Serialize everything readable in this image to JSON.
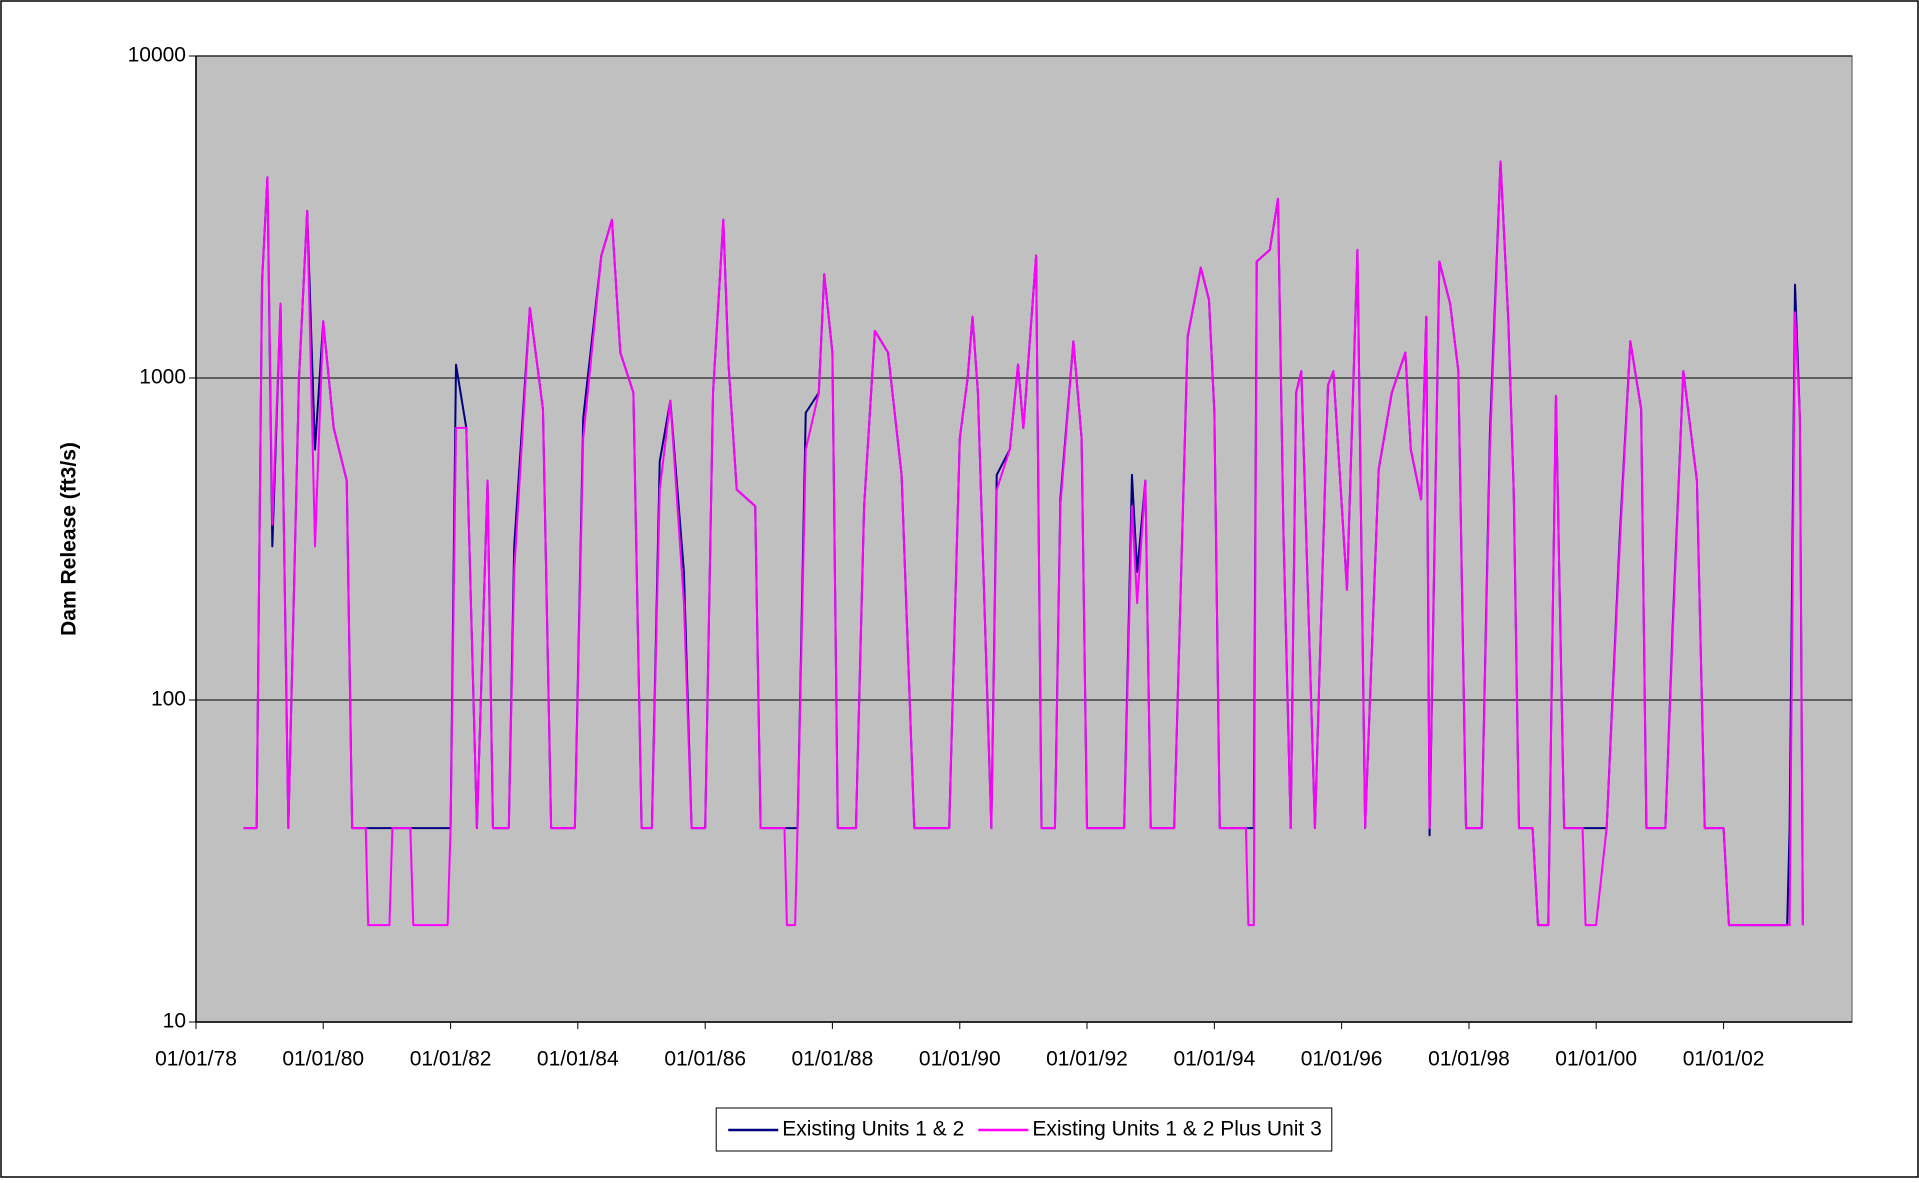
{
  "chart_data": {
    "type": "line",
    "y_label": "Dam Release (ft3/s)",
    "log_y": true,
    "grid": true,
    "legend": "bottom",
    "xlim": [
      "01/01/78",
      "01/08/04"
    ],
    "xticks": [
      "01/01/78",
      "01/01/80",
      "01/01/82",
      "01/01/84",
      "01/01/86",
      "01/01/88",
      "01/01/90",
      "01/01/92",
      "01/01/94",
      "01/01/96",
      "01/01/98",
      "01/01/00",
      "01/01/02"
    ],
    "ylim": [
      10,
      10000
    ],
    "yticks": [
      10,
      100,
      1000,
      10000
    ],
    "x": [
      "10/01/78",
      "12/15/78",
      "01/15/79",
      "02/15/79",
      "03/15/79",
      "05/01/79",
      "06/15/79",
      "08/15/79",
      "10/01/79",
      "11/15/79",
      "01/01/80",
      "03/01/80",
      "05/15/80",
      "06/15/80",
      "09/01/80",
      "09/15/80",
      "01/15/81",
      "02/01/81",
      "05/15/81",
      "06/01/81",
      "12/15/81",
      "01/01/82",
      "02/01/82",
      "04/01/82",
      "06/01/82",
      "08/01/82",
      "09/01/82",
      "12/01/82",
      "01/01/83",
      "04/01/83",
      "06/15/83",
      "08/01/83",
      "12/15/83",
      "02/01/84",
      "05/15/84",
      "07/15/84",
      "09/01/84",
      "11/15/84",
      "01/01/85",
      "03/01/85",
      "04/15/85",
      "06/15/85",
      "09/01/85",
      "10/15/85",
      "01/01/86",
      "02/15/86",
      "04/15/86",
      "05/15/86",
      "07/01/86",
      "10/15/86",
      "11/15/86",
      "04/01/87",
      "04/15/87",
      "06/01/87",
      "06/15/87",
      "08/01/87",
      "10/15/87",
      "11/15/87",
      "01/01/88",
      "02/01/88",
      "05/15/88",
      "07/01/88",
      "09/01/88",
      "11/15/88",
      "02/01/89",
      "04/15/89",
      "11/01/89",
      "01/01/90",
      "02/15/90",
      "03/15/90",
      "04/15/90",
      "07/01/90",
      "08/01/90",
      "10/15/90",
      "12/01/90",
      "01/01/91",
      "03/15/91",
      "04/15/91",
      "07/01/91",
      "08/01/91",
      "10/15/91",
      "12/01/91",
      "01/01/92",
      "08/01/92",
      "09/15/92",
      "10/15/92",
      "12/01/92",
      "01/01/93",
      "05/15/93",
      "08/01/93",
      "10/15/93",
      "12/01/93",
      "01/01/94",
      "02/01/94",
      "07/01/94",
      "07/15/94",
      "08/15/94",
      "09/01/94",
      "11/15/94",
      "01/01/95",
      "02/01/95",
      "03/15/95",
      "04/15/95",
      "05/15/95",
      "08/01/95",
      "10/15/95",
      "11/15/95",
      "02/01/96",
      "04/01/96",
      "05/15/96",
      "08/01/96",
      "10/15/96",
      "01/01/97",
      "02/01/97",
      "04/01/97",
      "05/01/97",
      "05/20/97",
      "07/15/97",
      "09/15/97",
      "11/01/97",
      "12/15/97",
      "03/15/98",
      "05/01/98",
      "07/01/98",
      "08/15/98",
      "09/15/98",
      "10/15/98",
      "01/01/99",
      "02/01/99",
      "04/01/99",
      "05/15/99",
      "07/01/99",
      "10/15/99",
      "11/01/99",
      "12/31/99",
      "03/01/00",
      "05/15/00",
      "07/15/00",
      "09/15/00",
      "10/15/00",
      "02/01/01",
      "03/15/01",
      "05/15/01",
      "08/01/01",
      "09/15/01",
      "01/01/02",
      "02/01/02",
      "01/01/03",
      "01/15/03",
      "02/15/03",
      "03/15/03",
      "04/01/03"
    ],
    "series": [
      {
        "name": "Existing Units 1 & 2",
        "color": "#000080",
        "values": [
          40,
          40,
          2000,
          4200,
          300,
          1700,
          40,
          1000,
          3300,
          600,
          1500,
          700,
          480,
          40,
          40,
          40,
          40,
          40,
          40,
          40,
          40,
          40,
          1100,
          700,
          40,
          480,
          40,
          40,
          300,
          1650,
          800,
          40,
          40,
          750,
          2400,
          3100,
          1200,
          900,
          40,
          40,
          550,
          850,
          250,
          40,
          40,
          900,
          3100,
          1100,
          450,
          400,
          40,
          40,
          40,
          40,
          40,
          780,
          900,
          2100,
          1200,
          40,
          40,
          400,
          1400,
          1200,
          500,
          40,
          40,
          650,
          1000,
          1550,
          900,
          40,
          500,
          600,
          1100,
          700,
          2400,
          40,
          40,
          420,
          1300,
          650,
          40,
          40,
          500,
          250,
          480,
          40,
          40,
          1350,
          2200,
          1750,
          780,
          40,
          40,
          40,
          40,
          2300,
          2500,
          3600,
          340,
          40,
          900,
          1050,
          40,
          950,
          1050,
          220,
          2500,
          40,
          520,
          900,
          1200,
          600,
          420,
          1550,
          38,
          2300,
          1700,
          1050,
          40,
          40,
          670,
          4700,
          1500,
          440,
          40,
          40,
          20,
          20,
          880,
          40,
          40,
          40,
          40,
          40,
          320,
          1300,
          800,
          40,
          40,
          170,
          1050,
          480,
          40,
          40,
          20,
          20,
          40,
          1950,
          750,
          20
        ]
      },
      {
        "name": "Existing Units 1 & 2 Plus Unit 3",
        "color": "#ff00ff",
        "values": [
          40,
          40,
          2000,
          4200,
          350,
          1700,
          40,
          1000,
          3300,
          300,
          1500,
          700,
          480,
          40,
          40,
          20,
          20,
          40,
          40,
          20,
          20,
          40,
          700,
          700,
          40,
          480,
          40,
          40,
          250,
          1650,
          800,
          40,
          40,
          650,
          2400,
          3100,
          1200,
          900,
          40,
          40,
          450,
          850,
          200,
          40,
          40,
          900,
          3100,
          1100,
          450,
          400,
          40,
          40,
          20,
          20,
          40,
          600,
          900,
          2100,
          1200,
          40,
          40,
          400,
          1400,
          1200,
          500,
          40,
          40,
          650,
          1000,
          1550,
          900,
          40,
          450,
          600,
          1100,
          700,
          2400,
          40,
          40,
          400,
          1300,
          650,
          40,
          40,
          400,
          200,
          480,
          40,
          40,
          1350,
          2200,
          1750,
          780,
          40,
          40,
          20,
          20,
          2300,
          2500,
          3600,
          340,
          40,
          900,
          1050,
          40,
          950,
          1050,
          220,
          2500,
          40,
          520,
          900,
          1200,
          600,
          420,
          1550,
          40,
          2300,
          1700,
          1050,
          40,
          40,
          600,
          4700,
          1500,
          440,
          40,
          40,
          20,
          20,
          880,
          40,
          40,
          20,
          20,
          40,
          300,
          1300,
          800,
          40,
          40,
          160,
          1050,
          480,
          40,
          40,
          20,
          20,
          20,
          1600,
          750,
          20
        ]
      }
    ]
  }
}
